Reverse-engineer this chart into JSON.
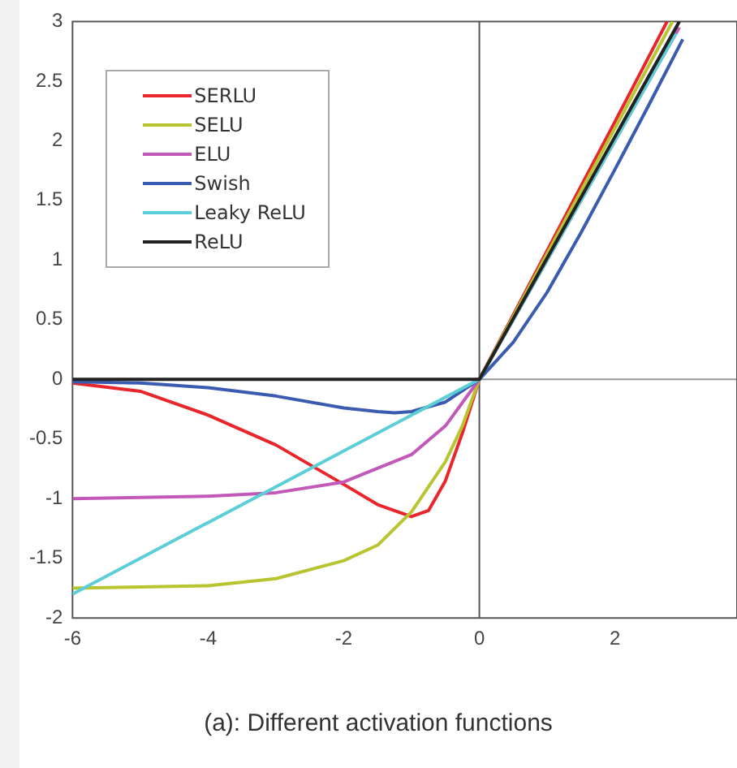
{
  "chart_data": {
    "type": "line",
    "title": "(a): Different activation functions",
    "xlim": [
      -6,
      3.8
    ],
    "xticks": [
      -6,
      -4,
      -2,
      0,
      2
    ],
    "ylim": [
      -2,
      3
    ],
    "yticks": [
      -2,
      -1.5,
      -1,
      -0.5,
      0,
      0.5,
      1,
      1.5,
      2,
      2.5,
      3
    ],
    "grid": false,
    "legend": "top left",
    "marker": "none",
    "line_style": "solid",
    "ref_lines": [
      {
        "axis": "y",
        "value": 0,
        "color": "#999999"
      },
      {
        "axis": "x",
        "value": 0,
        "color": "#555555"
      }
    ],
    "series": [
      {
        "name": "SERLU",
        "color": "#e8262b",
        "x": [
          -6,
          -5,
          -4,
          -3,
          -2,
          -1.5,
          -1,
          -0.75,
          -0.5,
          -0.25,
          0,
          1,
          2,
          2.77
        ],
        "values": [
          -0.03,
          -0.1,
          -0.3,
          -0.55,
          -0.88,
          -1.05,
          -1.15,
          -1.1,
          -0.85,
          -0.45,
          0,
          1.08,
          2.16,
          3
        ]
      },
      {
        "name": "SELU",
        "color": "#b8c430",
        "x": [
          -6,
          -4,
          -3,
          -2,
          -1.5,
          -1,
          -0.5,
          -0.25,
          0,
          2.85
        ],
        "values": [
          -1.75,
          -1.73,
          -1.67,
          -1.52,
          -1.39,
          -1.11,
          -0.69,
          -0.39,
          0,
          3
        ]
      },
      {
        "name": "ELU",
        "color": "#c259b8",
        "x": [
          -6,
          -4,
          -3,
          -2,
          -1,
          -0.5,
          0,
          2.95
        ],
        "values": [
          -1,
          -0.98,
          -0.95,
          -0.86,
          -0.63,
          -0.39,
          0,
          2.95
        ]
      },
      {
        "name": "Swish",
        "color": "#3a5bb0",
        "x": [
          -6,
          -5,
          -4,
          -3,
          -2,
          -1.5,
          -1.25,
          -1,
          -0.5,
          0,
          0.5,
          1,
          1.5,
          2,
          2.5,
          3
        ],
        "values": [
          -0.02,
          -0.03,
          -0.07,
          -0.14,
          -0.24,
          -0.27,
          -0.28,
          -0.27,
          -0.19,
          0,
          0.31,
          0.73,
          1.23,
          1.76,
          2.3,
          2.85
        ]
      },
      {
        "name": "Leaky ReLU",
        "color": "#5ccfd6",
        "x": [
          -6,
          0,
          2.9
        ],
        "values": [
          -1.8,
          0,
          2.9
        ]
      },
      {
        "name": "ReLU",
        "color": "#222222",
        "x": [
          -6,
          0,
          2.95
        ],
        "values": [
          0,
          0,
          3
        ]
      }
    ]
  }
}
